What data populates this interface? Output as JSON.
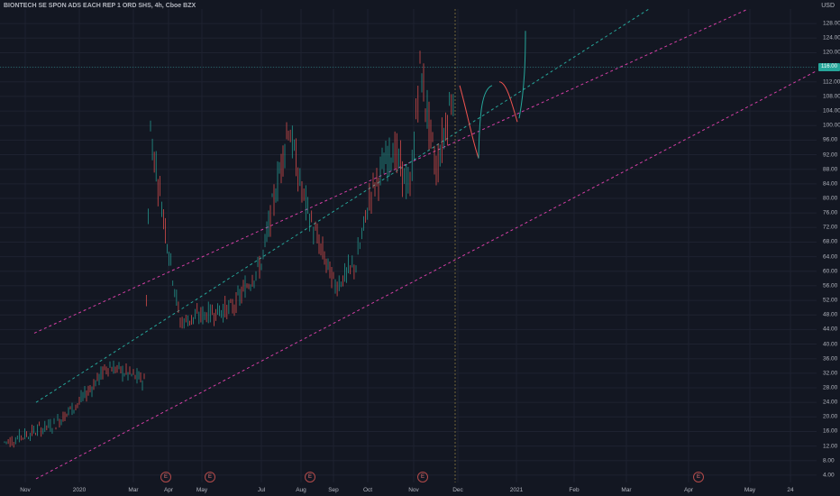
{
  "header": {
    "title": "BIONTECH SE SPON ADS EACH REP 1 ORD SHS, 4h, Cboe BZX",
    "currency": "USD"
  },
  "price_badge": {
    "value": 116.0,
    "color": "#26a69a"
  },
  "chart_data": {
    "type": "line",
    "title": "BIONTECH SE SPON ADS EACH REP 1 ORD SHS, 4h, Cboe BZX",
    "xlabel": "",
    "ylabel": "",
    "y_ticks": [
      "128.00",
      "124.00",
      "120.00",
      "116.00",
      "112.00",
      "108.00",
      "104.00",
      "100.00",
      "96.00",
      "92.00",
      "88.00",
      "84.00",
      "80.00",
      "76.00",
      "72.00",
      "68.00",
      "64.00",
      "60.00",
      "56.00",
      "52.00",
      "48.00",
      "44.00",
      "40.00",
      "36.00",
      "32.00",
      "28.00",
      "24.00",
      "20.00",
      "16.00",
      "12.00",
      "8.00",
      "4.00"
    ],
    "x_ticks": [
      "Nov",
      "2020",
      "Mar",
      "Apr",
      "May",
      "Jul",
      "Aug",
      "Sep",
      "Oct",
      "Nov",
      "Dec",
      "2021",
      "Feb",
      "Mar",
      "Apr",
      "May",
      "24"
    ],
    "ylim": [
      2,
      132
    ],
    "grid": true,
    "series": [
      {
        "color": "#b2b5be",
        "x": [
          "Nov",
          "Dec",
          "2020",
          "Feb",
          "Mar",
          "Mar",
          "Apr",
          "May",
          "Jun",
          "Jul",
          "Jul",
          "Aug",
          "Aug",
          "Sep",
          "Sep",
          "Oct",
          "Oct",
          "Nov",
          "Nov",
          "Nov",
          "Dec"
        ],
        "values": [
          13,
          18,
          24,
          34,
          30,
          98,
          46,
          48,
          50,
          62,
          100,
          82,
          70,
          56,
          62,
          82,
          94,
          82,
          116,
          88,
          112
        ]
      }
    ],
    "channel": {
      "upper_color": "#d43fa5",
      "middle_color": "#26a69a",
      "lower_color": "#d43fa5"
    },
    "projection_colors": {
      "down": "#ef5350",
      "up": "#26a69a"
    },
    "earnings_markers": [
      "E",
      "E",
      "E",
      "E",
      "E"
    ]
  }
}
